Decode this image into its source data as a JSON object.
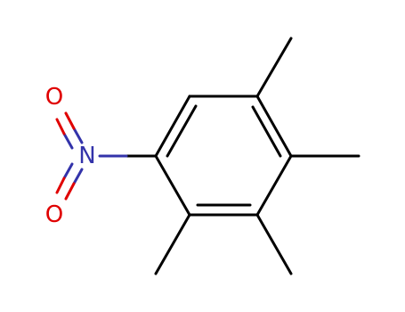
{
  "atoms": [
    {
      "label": "O"
    },
    {
      "label": "N"
    },
    {
      "label": "O"
    }
  ]
}
